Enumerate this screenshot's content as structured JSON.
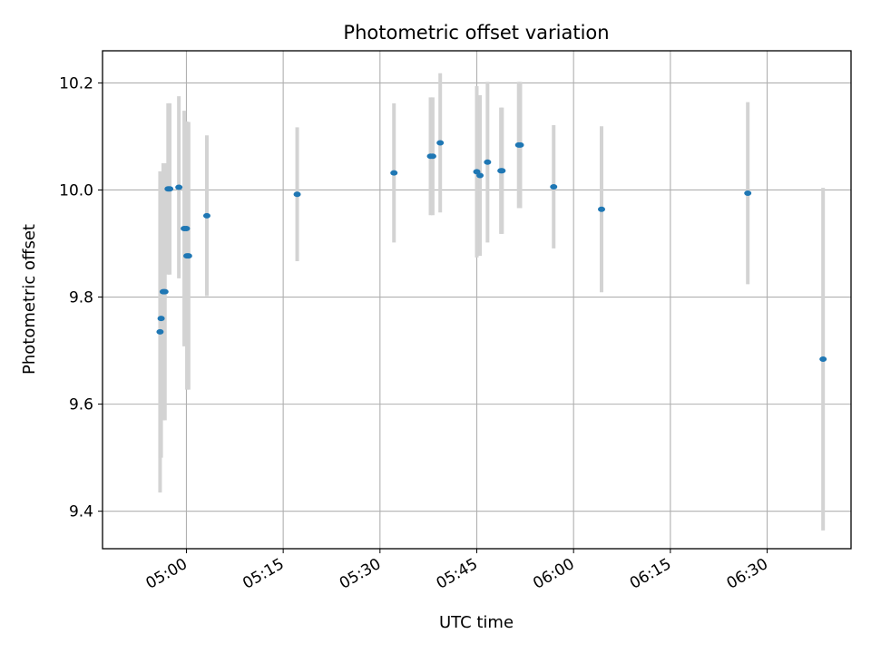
{
  "chart_data": {
    "type": "scatter",
    "title": "Photometric offset variation",
    "xlabel": "UTC time",
    "ylabel": "Photometric offset",
    "xlim": [
      "04:47",
      "06:43"
    ],
    "ylim": [
      9.33,
      10.26
    ],
    "x_ticks": [
      "05:00",
      "05:15",
      "05:30",
      "05:45",
      "06:00",
      "06:15",
      "06:30"
    ],
    "y_ticks": [
      9.4,
      9.6,
      9.8,
      10.0,
      10.2
    ],
    "grid": true,
    "marker_color": "#1f77b4",
    "errorbar_color": "#d3d3d3",
    "points": [
      {
        "x": "04:55:55",
        "y": 9.735,
        "err": 0.3
      },
      {
        "x": "04:56:05",
        "y": 9.76,
        "err": 0.26
      },
      {
        "x": "04:56:25",
        "y": 9.81,
        "err": 0.24
      },
      {
        "x": "04:56:40",
        "y": 9.81,
        "err": 0.24
      },
      {
        "x": "04:57:10",
        "y": 10.002,
        "err": 0.16
      },
      {
        "x": "04:57:25",
        "y": 10.002,
        "err": 0.16
      },
      {
        "x": "04:58:50",
        "y": 10.005,
        "err": 0.17
      },
      {
        "x": "04:59:40",
        "y": 9.928,
        "err": 0.22
      },
      {
        "x": "05:00:00",
        "y": 9.928,
        "err": 0.2
      },
      {
        "x": "05:00:05",
        "y": 9.877,
        "err": 0.25
      },
      {
        "x": "05:00:20",
        "y": 9.877,
        "err": 0.25
      },
      {
        "x": "05:03:10",
        "y": 9.952,
        "err": 0.15
      },
      {
        "x": "05:17:10",
        "y": 9.992,
        "err": 0.125
      },
      {
        "x": "05:32:10",
        "y": 10.032,
        "err": 0.13
      },
      {
        "x": "05:37:50",
        "y": 10.063,
        "err": 0.11
      },
      {
        "x": "05:38:10",
        "y": 10.063,
        "err": 0.11
      },
      {
        "x": "05:39:20",
        "y": 10.088,
        "err": 0.13
      },
      {
        "x": "05:45:00",
        "y": 10.034,
        "err": 0.16
      },
      {
        "x": "05:45:30",
        "y": 10.027,
        "err": 0.15
      },
      {
        "x": "05:46:40",
        "y": 10.052,
        "err": 0.15
      },
      {
        "x": "05:48:45",
        "y": 10.036,
        "err": 0.118
      },
      {
        "x": "05:48:55",
        "y": 10.036,
        "err": 0.118
      },
      {
        "x": "05:51:30",
        "y": 10.084,
        "err": 0.118
      },
      {
        "x": "05:51:45",
        "y": 10.084,
        "err": 0.118
      },
      {
        "x": "05:56:55",
        "y": 10.006,
        "err": 0.115
      },
      {
        "x": "06:04:20",
        "y": 9.964,
        "err": 0.155
      },
      {
        "x": "06:27:00",
        "y": 9.994,
        "err": 0.17
      },
      {
        "x": "06:38:40",
        "y": 9.684,
        "err": 0.32
      }
    ]
  }
}
